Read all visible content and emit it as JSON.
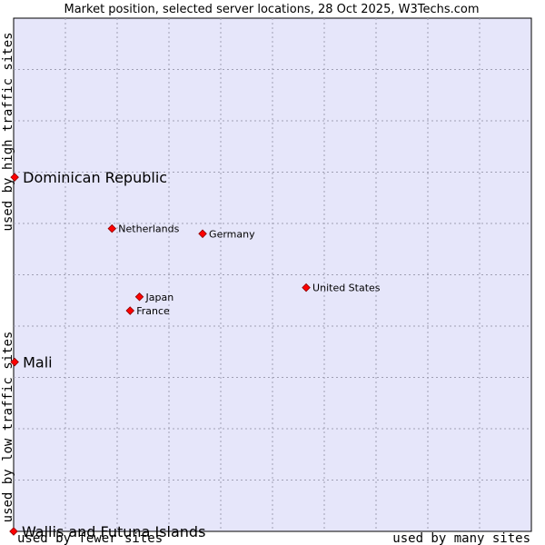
{
  "chart_data": {
    "type": "scatter",
    "title": "Market position, selected server locations, 28 Oct 2025, W3Techs.com",
    "xlabel_left": "used by fewer sites",
    "xlabel_right": "used by many sites",
    "ylabel_top": "used by high traffic sites",
    "ylabel_bottom": "used by low traffic sites",
    "xlim": [
      0,
      10
    ],
    "ylim": [
      0,
      10
    ],
    "grid": true,
    "marker_color": "#ff0000",
    "plot_background": "#e6e6fa",
    "points": [
      {
        "name": "Dominican Republic",
        "x": 0.02,
        "y": 6.9,
        "emphasis": true
      },
      {
        "name": "Netherlands",
        "x": 1.9,
        "y": 5.9,
        "emphasis": false
      },
      {
        "name": "Germany",
        "x": 3.65,
        "y": 5.8,
        "emphasis": false
      },
      {
        "name": "United States",
        "x": 5.65,
        "y": 4.75,
        "emphasis": false
      },
      {
        "name": "Japan",
        "x": 2.43,
        "y": 4.57,
        "emphasis": false
      },
      {
        "name": "France",
        "x": 2.25,
        "y": 4.3,
        "emphasis": false
      },
      {
        "name": "Mali",
        "x": 0.02,
        "y": 3.3,
        "emphasis": true
      },
      {
        "name": "Wallis and Futuna Islands",
        "x": 0.0,
        "y": 0.0,
        "emphasis": true
      }
    ]
  }
}
